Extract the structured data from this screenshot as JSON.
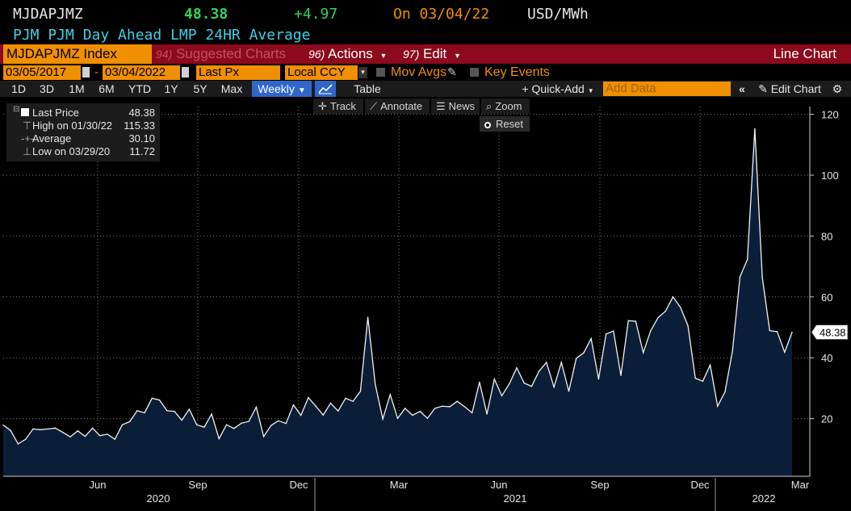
{
  "header": {
    "ticker": "MJDAPJMZ",
    "last_price": "48.38",
    "change": "+4.97",
    "date_label": "On 03/04/22",
    "units": "USD/MWh",
    "description": "PJM PJM Day Ahead LMP 24HR Average"
  },
  "toolbar": {
    "security": "MJDAPJMZ Index",
    "suggested_num": "94)",
    "suggested_label": "Suggested Charts",
    "actions_num": "96)",
    "actions_label": "Actions",
    "edit_num": "97)",
    "edit_label": "Edit",
    "chart_type": "Line Chart"
  },
  "options": {
    "start_date": "03/05/2017",
    "end_date": "03/04/2022",
    "date_sep": "-",
    "field": "Last Px",
    "currency": "Local CCY",
    "mov_avgs": "Mov Avgs",
    "key_events": "Key Events"
  },
  "periods": {
    "items": [
      "1D",
      "3D",
      "1M",
      "6M",
      "YTD",
      "1Y",
      "5Y",
      "Max"
    ],
    "frequency": "Weekly",
    "table": "Table",
    "quick_add": "Quick-Add",
    "add_data_placeholder": "Add Data",
    "edit_chart": "Edit Chart"
  },
  "tools": {
    "track": "Track",
    "annotate": "Annotate",
    "news": "News",
    "zoom": "Zoom",
    "reset": "Reset"
  },
  "legend": {
    "last_label": "Last Price",
    "last_value": "48.38",
    "high_label": "High on 01/30/22",
    "high_value": "115.33",
    "avg_label": "Average",
    "avg_value": "30.10",
    "low_label": "Low on 03/29/20",
    "low_value": "11.72"
  },
  "colors": {
    "accent_orange": "#f08f00",
    "title_cyan": "#3fd0e8",
    "change_green": "#31d35c",
    "bar_red": "#8c0a1c",
    "selected_blue": "#2f66cc",
    "area_fill": "#0b1e38"
  },
  "chart_data": {
    "type": "area",
    "x_start": "2020-03-06",
    "x_end": "2022-03-04",
    "x_step": "weekly",
    "ylim": [
      0,
      125
    ],
    "yticks": [
      20,
      40,
      60,
      80,
      100,
      120
    ],
    "x_ticks_month": [
      "Jun",
      "Sep",
      "Dec",
      "Mar",
      "Jun",
      "Sep",
      "Dec",
      "Mar"
    ],
    "x_ticks_year": [
      "2020",
      "2021",
      "2022"
    ],
    "last_label": "48.38",
    "grid": true,
    "values": [
      17.9,
      16.1,
      11.7,
      13.2,
      16.6,
      16.4,
      16.6,
      16.9,
      15.5,
      14.0,
      16.0,
      14.2,
      16.9,
      14.4,
      14.9,
      13.2,
      18.0,
      19.0,
      22.6,
      21.9,
      26.7,
      26.1,
      22.6,
      22.4,
      19.5,
      23.1,
      18.0,
      17.2,
      21.5,
      13.4,
      18.0,
      16.8,
      18.5,
      19.1,
      23.8,
      14.1,
      17.8,
      19.3,
      18.4,
      24.5,
      21.1,
      26.9,
      24.1,
      21.2,
      25.1,
      22.5,
      26.7,
      25.7,
      29.0,
      53.3,
      31.2,
      19.9,
      27.9,
      20.1,
      23.4,
      21.1,
      22.4,
      20.1,
      23.4,
      24.1,
      23.9,
      25.7,
      23.9,
      21.9,
      32.0,
      21.5,
      33.0,
      27.5,
      31.4,
      36.7,
      31.7,
      30.6,
      35.6,
      38.5,
      30.4,
      38.5,
      29.0,
      39.8,
      41.6,
      46.3,
      33.0,
      47.8,
      48.8,
      34.2,
      52.2,
      52.0,
      41.7,
      48.9,
      53.2,
      55.3,
      60.0,
      56.6,
      50.6,
      33.3,
      32.3,
      37.6,
      24.1,
      28.8,
      42.4,
      66.6,
      72.3,
      115.3,
      66.5,
      48.9,
      48.6,
      41.8,
      48.4
    ]
  }
}
